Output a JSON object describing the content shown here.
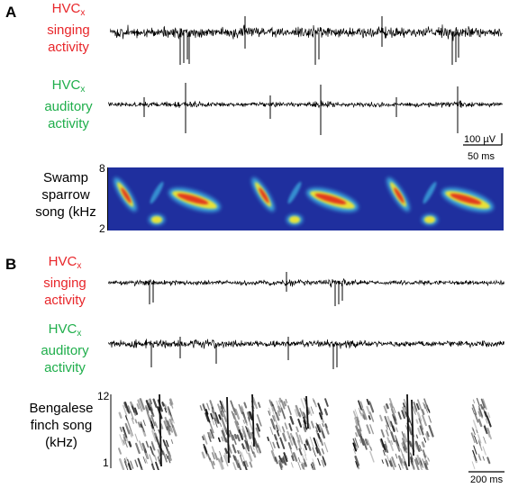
{
  "panel_a": {
    "letter": "A",
    "singing": {
      "line1": "HVC",
      "sub": "x",
      "line2": "singing",
      "line3": "activity",
      "color": "#e8262a"
    },
    "auditory": {
      "line1": "HVC",
      "sub": "x",
      "line2": "auditory",
      "line3": "activity",
      "color": "#1fae4b"
    },
    "scalebar": {
      "amplitude": "100 µV",
      "time": "50 ms"
    },
    "song": {
      "line1": "Swamp",
      "line2": "sparrow",
      "line3": "song (kHz",
      "y_top": "8",
      "y_bottom": "2"
    }
  },
  "panel_b": {
    "letter": "B",
    "singing": {
      "line1": "HVC",
      "sub": "x",
      "line2": "singing",
      "line3": "activity",
      "color": "#e8262a"
    },
    "auditory": {
      "line1": "HVC",
      "sub": "x",
      "line2": "auditory",
      "line3": "activity",
      "color": "#1fae4b"
    },
    "song": {
      "line1": "Bengalese",
      "line2": "finch song",
      "line3": "(kHz)",
      "y_top": "12",
      "y_bottom": "1"
    },
    "scalebar": {
      "time": "200 ms"
    }
  },
  "colors": {
    "trace": "#000000",
    "spectrogram_bg": "#1f2f9e",
    "singing_label": "#e8262a",
    "auditory_label": "#1fae4b"
  }
}
